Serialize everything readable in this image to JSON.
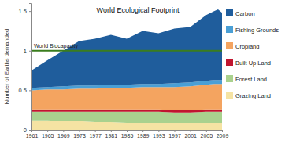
{
  "chart_data": {
    "type": "area",
    "title": "World Ecological Footprint",
    "ylabel": "Number of Earths demanded",
    "stacked": true,
    "legend": "right",
    "x": [
      1961,
      1965,
      1969,
      1973,
      1977,
      1981,
      1985,
      1989,
      1993,
      1997,
      2001,
      2005,
      2007,
      2008,
      2009
    ],
    "xlim": [
      1961,
      2009
    ],
    "xticks": [
      1961,
      1965,
      1969,
      1973,
      1977,
      1981,
      1985,
      1989,
      1993,
      1997,
      2001,
      2005,
      2009
    ],
    "ylim": [
      0,
      1.6
    ],
    "yticks": [
      0,
      0.5,
      1,
      1.5
    ],
    "series": [
      {
        "name": "Grazing Land",
        "color": "#f5e3a3",
        "values": [
          0.12,
          0.12,
          0.11,
          0.11,
          0.1,
          0.1,
          0.09,
          0.09,
          0.09,
          0.09,
          0.09,
          0.09,
          0.09,
          0.09,
          0.09
        ]
      },
      {
        "name": "Forest Land",
        "color": "#a9d18e",
        "values": [
          0.11,
          0.11,
          0.12,
          0.12,
          0.13,
          0.13,
          0.14,
          0.14,
          0.14,
          0.13,
          0.13,
          0.14,
          0.14,
          0.14,
          0.14
        ]
      },
      {
        "name": "Built Up Land",
        "color": "#c0152f",
        "values": [
          0.03,
          0.03,
          0.03,
          0.03,
          0.03,
          0.03,
          0.03,
          0.03,
          0.03,
          0.03,
          0.03,
          0.03,
          0.03,
          0.03,
          0.03
        ]
      },
      {
        "name": "Cropland",
        "color": "#f4a460",
        "values": [
          0.24,
          0.25,
          0.25,
          0.26,
          0.26,
          0.27,
          0.27,
          0.28,
          0.28,
          0.29,
          0.3,
          0.31,
          0.32,
          0.32,
          0.32
        ]
      },
      {
        "name": "Fishing Grounds",
        "color": "#4a9fd5",
        "values": [
          0.03,
          0.03,
          0.04,
          0.04,
          0.04,
          0.04,
          0.04,
          0.04,
          0.04,
          0.05,
          0.05,
          0.05,
          0.05,
          0.05,
          0.05
        ]
      },
      {
        "name": "Carbon",
        "color": "#1f5d9c",
        "values": [
          0.22,
          0.34,
          0.45,
          0.56,
          0.59,
          0.63,
          0.58,
          0.67,
          0.64,
          0.69,
          0.7,
          0.83,
          0.87,
          0.89,
          0.85
        ]
      }
    ],
    "annotations": [
      {
        "text": "World Biocapacity",
        "y": 1,
        "color": "#3a7d1e"
      }
    ]
  }
}
